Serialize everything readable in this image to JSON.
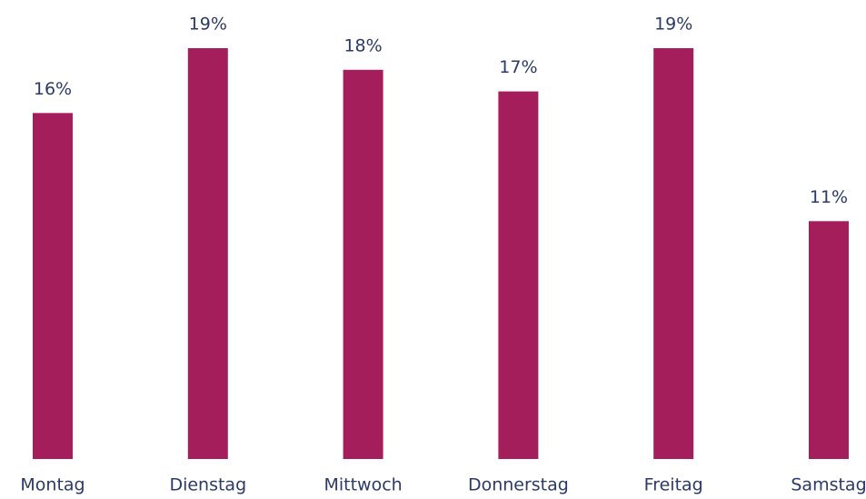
{
  "chart_data": {
    "type": "bar",
    "categories": [
      "Montag",
      "Dienstag",
      "Mittwoch",
      "Donnerstag",
      "Freitag",
      "Samstag"
    ],
    "values": [
      16,
      19,
      18,
      17,
      19,
      11
    ],
    "value_labels": [
      "16%",
      "19%",
      "18%",
      "17%",
      "19%",
      "11%"
    ],
    "color": "#a51e5c"
  }
}
